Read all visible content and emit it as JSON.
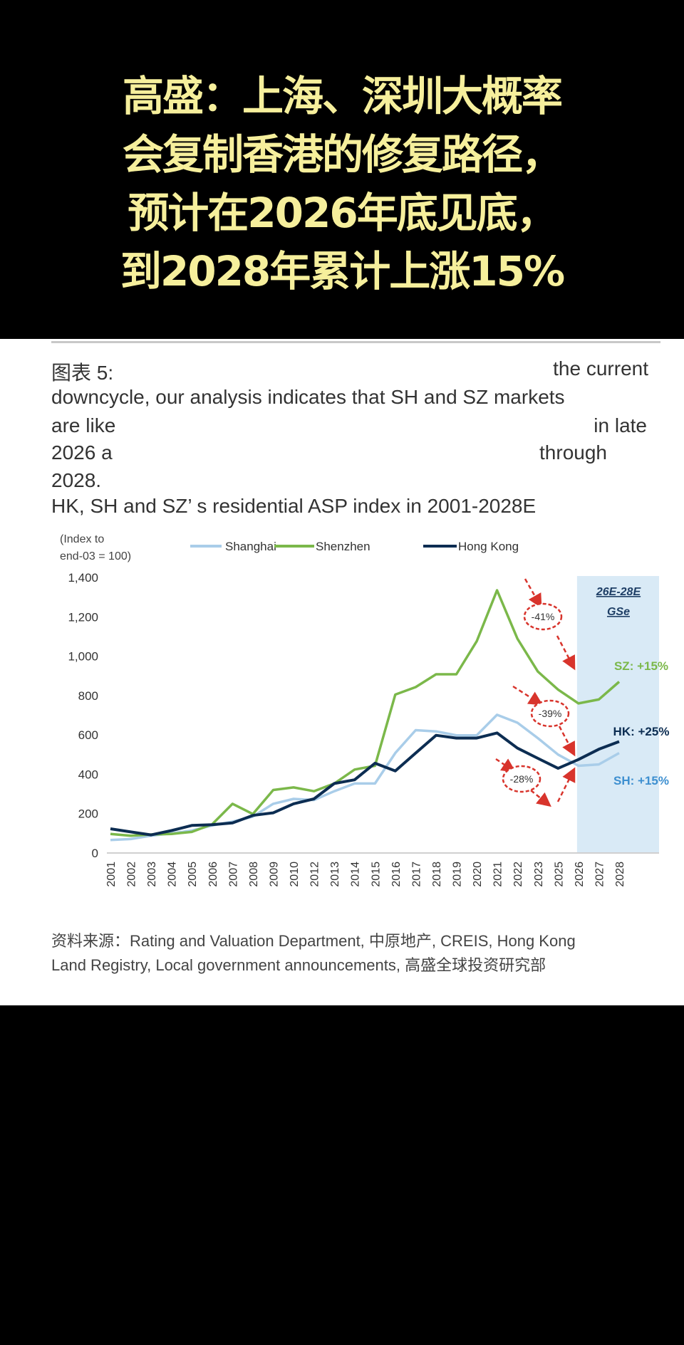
{
  "headline": [
    "高盛：上海、深圳大概率",
    "会复制香港的修复路径，",
    "预计在2026年底见底，",
    "到2028年累计上涨15%"
  ],
  "paragraph": {
    "line1_left": "图表 5:",
    "line1_right": "the current",
    "line2": "downcycle, our analysis indicates that SH and SZ markets",
    "line3_left": "are like",
    "line3_right": "in late",
    "line4_left": "2026 a",
    "line4_right": "through",
    "line5": "2028.",
    "subtitle": "HK, SH and SZ’ s residential ASP index in 2001-2028E"
  },
  "footer": {
    "line1": "资料来源：Rating and Valuation Department, 中原地产, CREIS, Hong Kong",
    "line2": "Land Registry, Local government announcements, 高盛全球投资研究部"
  },
  "chart_data": {
    "type": "line",
    "ylabel_line1": "(Index to",
    "ylabel_line2": "end-03 = 100)",
    "ylim": [
      0,
      1400
    ],
    "yticks": [
      "0",
      "200",
      "400",
      "600",
      "800",
      "1,000",
      "1,200",
      "1,400"
    ],
    "ytick_values": [
      0,
      200,
      400,
      600,
      800,
      1000,
      1200,
      1400
    ],
    "grid": false,
    "legend_placement": "top",
    "categories": [
      "2001",
      "2002",
      "2003",
      "2004",
      "2005",
      "2006",
      "2007",
      "2008",
      "2009",
      "2010",
      "2012",
      "2013",
      "2014",
      "2015",
      "2016",
      "2017",
      "2018",
      "2019",
      "2020",
      "2021",
      "2022",
      "2023",
      "2025",
      "2026",
      "2027",
      "2028"
    ],
    "series": [
      {
        "name": "Shanghai",
        "color": "#a9cde9",
        "values": [
          66,
          71,
          88,
          100,
          114,
          140,
          159,
          185,
          250,
          275,
          269,
          314,
          353,
          353,
          508,
          624,
          618,
          598,
          598,
          702,
          662,
          584,
          500,
          443,
          450,
          508
        ]
      },
      {
        "name": "Shenzhen",
        "color": "#7bb84a",
        "values": [
          97,
          88,
          94,
          97,
          107,
          146,
          250,
          198,
          320,
          333,
          314,
          353,
          424,
          443,
          805,
          843,
          908,
          908,
          1076,
          1335,
          1089,
          922,
          830,
          760,
          780,
          870
        ]
      },
      {
        "name": "Hong Kong",
        "color": "#0c2d52",
        "values": [
          123,
          107,
          92,
          114,
          140,
          144,
          153,
          191,
          204,
          250,
          275,
          353,
          372,
          456,
          417,
          508,
          598,
          584,
          584,
          610,
          533,
          481,
          430,
          475,
          527,
          566
        ]
      }
    ],
    "forecast_region": {
      "from": "2026",
      "to": "2028",
      "label_line1": "26E-28E",
      "label_line2": "GSe",
      "color": "#d9eaf6"
    },
    "annotations": [
      {
        "text": "-41%",
        "color": "#d8342c"
      },
      {
        "text": "-39%",
        "color": "#d8342c"
      },
      {
        "text": "-28%",
        "color": "#d8342c"
      },
      {
        "text": "SZ: +15%",
        "color": "#7bb84a"
      },
      {
        "text": "HK: +25%",
        "color": "#0c2d52"
      },
      {
        "text": "SH: +15%",
        "color": "#3d8fd0"
      }
    ]
  }
}
